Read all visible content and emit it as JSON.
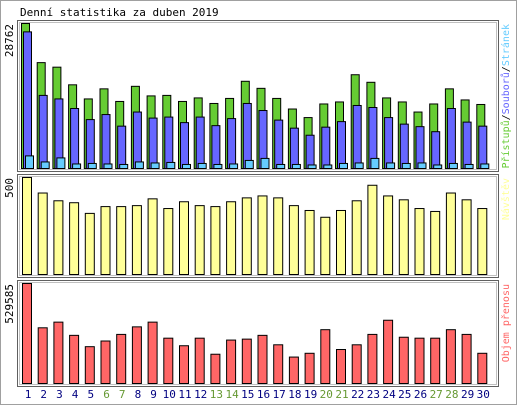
{
  "chart_data": [
    {
      "type": "bar",
      "title": "Denní statistika za duben 2019",
      "ylabel_max": "28762",
      "ymax": 28762,
      "legend": [
        "Přístupů",
        "Souborů",
        "Stránek"
      ],
      "legend_colors": [
        "#66cc33",
        "#6666ff",
        "#66ccff"
      ],
      "series": [
        {
          "name": "Přístupů",
          "color": "#66cc33",
          "values": [
            28762,
            21000,
            20100,
            16600,
            13800,
            15800,
            13300,
            16300,
            14400,
            14500,
            13300,
            14000,
            12900,
            13900,
            17300,
            15900,
            13900,
            11800,
            10100,
            12800,
            13200,
            18600,
            17100,
            14000,
            13200,
            11200,
            12800,
            15800,
            13600,
            12700
          ]
        },
        {
          "name": "Souborů",
          "color": "#6666ff",
          "values": [
            27100,
            14500,
            13800,
            11900,
            9700,
            10700,
            8400,
            11200,
            10000,
            10200,
            9100,
            10200,
            8500,
            9900,
            12900,
            11500,
            9600,
            8000,
            6600,
            8200,
            9300,
            12500,
            12100,
            10100,
            8800,
            8300,
            7300,
            11900,
            9200,
            8400
          ]
        },
        {
          "name": "Stránek",
          "color": "#66ccff",
          "values": [
            2500,
            1300,
            2100,
            900,
            1000,
            900,
            800,
            1300,
            1100,
            1200,
            800,
            1000,
            800,
            900,
            1600,
            2000,
            800,
            800,
            700,
            700,
            1000,
            1100,
            2000,
            1100,
            1000,
            1100,
            700,
            1000,
            800,
            900
          ]
        }
      ]
    },
    {
      "type": "bar",
      "ylabel_max": "500",
      "ymax": 500,
      "legend": [
        "Návštěv"
      ],
      "legend_colors": [
        "#ffff99"
      ],
      "series": [
        {
          "name": "Návštěv",
          "color": "#ffff99",
          "values": [
            500,
            420,
            380,
            370,
            315,
            350,
            350,
            355,
            390,
            340,
            375,
            355,
            350,
            375,
            395,
            405,
            395,
            355,
            330,
            295,
            330,
            380,
            460,
            405,
            385,
            340,
            325,
            420,
            385,
            340
          ]
        }
      ]
    },
    {
      "type": "bar",
      "ylabel_max": "529585",
      "ymax": 529585,
      "legend": [
        "Objem přenosu"
      ],
      "legend_colors": [
        "#ff6666"
      ],
      "series": [
        {
          "name": "Objem přenosu",
          "color": "#ff6666",
          "values": [
            529585,
            295000,
            325000,
            255000,
            195000,
            225000,
            260000,
            300000,
            325000,
            240000,
            200000,
            240000,
            155000,
            230000,
            235000,
            255000,
            205000,
            140000,
            160000,
            285000,
            180000,
            205000,
            260000,
            335000,
            245000,
            240000,
            240000,
            285000,
            260000,
            160000
          ]
        }
      ]
    }
  ],
  "x_categories": [
    "1",
    "2",
    "3",
    "4",
    "5",
    "6",
    "7",
    "8",
    "9",
    "10",
    "11",
    "12",
    "13",
    "14",
    "15",
    "16",
    "17",
    "18",
    "19",
    "20",
    "21",
    "22",
    "23",
    "24",
    "25",
    "26",
    "27",
    "28",
    "29",
    "30"
  ],
  "weekend_days": [
    "6",
    "7",
    "13",
    "14",
    "20",
    "21",
    "27",
    "28"
  ],
  "colors": {
    "weekday_label": "#000080",
    "weekend_label": "#669933",
    "frame": "#606060",
    "inner_border": "#c0c0c0"
  }
}
